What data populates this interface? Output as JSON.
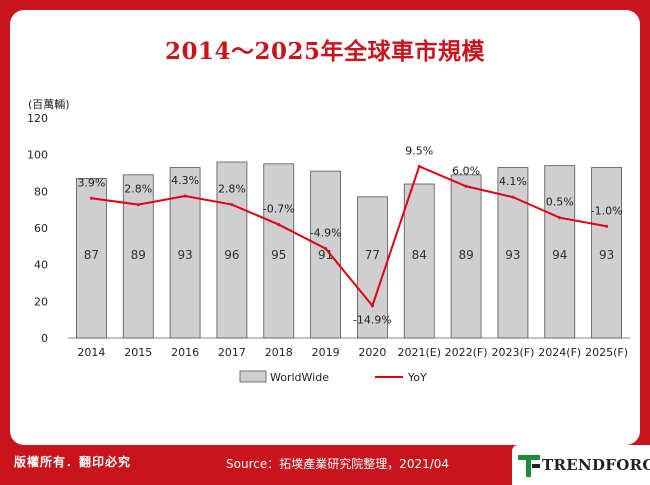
{
  "chart_data": {
    "type": "bar",
    "title": "2014～2025年全球車市規模",
    "unit_label": "(百萬輛)",
    "categories": [
      "2014",
      "2015",
      "2016",
      "2017",
      "2018",
      "2019",
      "2020",
      "2021(E)",
      "2022(F)",
      "2023(F)",
      "2024(F)",
      "2025(F)"
    ],
    "series": [
      {
        "name": "WorldWide",
        "type": "bar",
        "values": [
          87,
          89,
          93,
          96,
          95,
          91,
          77,
          84,
          89,
          93,
          94,
          93
        ],
        "color": "#cfcfcf"
      },
      {
        "name": "YoY",
        "type": "line",
        "values": [
          3.9,
          2.8,
          4.3,
          2.8,
          -0.7,
          -4.9,
          -14.9,
          9.5,
          6.0,
          4.1,
          0.5,
          -1.0
        ],
        "labels": [
          "3.9%",
          "2.8%",
          "4.3%",
          "2.8%",
          "-0.7%",
          "-4.9%",
          "-14.9%",
          "9.5%",
          "6.0%",
          "4.1%",
          "0.5%",
          "-1.0%"
        ],
        "color": "#e00012"
      }
    ],
    "ylim": [
      0,
      120
    ],
    "yticks": [
      "0",
      "20",
      "40",
      "60",
      "80",
      "100",
      "120"
    ],
    "grid": false,
    "legend": "bottom"
  },
  "footer": {
    "rights": "版權所有．翻印必究",
    "source": "Source：拓墣產業研究院整理，2021/04"
  },
  "logo": {
    "text": "TRENDFORCE",
    "icon": "trendforce-mark-icon"
  },
  "colors": {
    "frame": "#c9141c",
    "bar": "#cfcfcf",
    "line": "#e00012"
  }
}
